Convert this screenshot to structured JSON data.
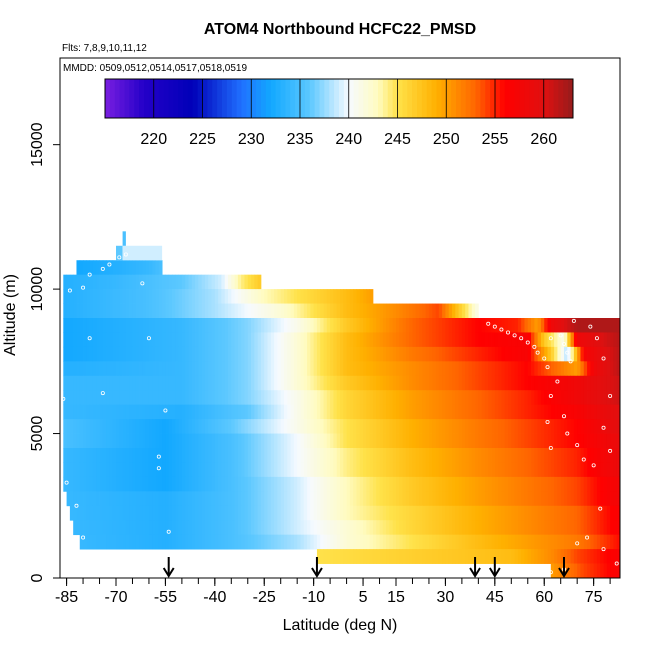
{
  "chart_data": {
    "type": "heatmap",
    "title": "ATOM4 Northbound HCFC22_PMSD",
    "subtitle_lines": [
      "Flts: 7,8,9,10,11,12",
      "MMDD: 0509,0512,0514,0517,0518,0519"
    ],
    "xlabel": "Latitude (deg N)",
    "ylabel": "Altitude (m)",
    "xlim": [
      -87,
      83
    ],
    "ylim": [
      0,
      18000
    ],
    "x_ticks": [
      -85,
      -70,
      -55,
      -40,
      -25,
      -10,
      5,
      15,
      30,
      45,
      60,
      75
    ],
    "x_tick_labels": [
      "-85",
      "-70",
      "-55",
      "-40",
      "-25",
      "-10",
      "5",
      "15",
      "30",
      "45",
      "60",
      "75"
    ],
    "x_minor_step": 5,
    "y_ticks": [
      0,
      5000,
      10000,
      15000
    ],
    "y_tick_labels": [
      "0",
      "5000",
      "10000",
      "15000"
    ],
    "colorbar": {
      "min": 215,
      "max": 263,
      "ticks": [
        220,
        225,
        230,
        235,
        240,
        245,
        250,
        255,
        260
      ],
      "tick_labels": [
        "220",
        "225",
        "230",
        "235",
        "240",
        "245",
        "250",
        "255",
        "260"
      ],
      "stops": [
        [
          215,
          "#7a1fe0"
        ],
        [
          219,
          "#2400c8"
        ],
        [
          224,
          "#0000b8"
        ],
        [
          229,
          "#2070ff"
        ],
        [
          232,
          "#12a8ff"
        ],
        [
          236,
          "#5cc8ff"
        ],
        [
          240,
          "#f6faff"
        ],
        [
          243,
          "#fffbc0"
        ],
        [
          245,
          "#ffe24a"
        ],
        [
          249,
          "#ffb000"
        ],
        [
          253,
          "#ff6600"
        ],
        [
          256,
          "#ff0000"
        ],
        [
          260,
          "#e01010"
        ],
        [
          263,
          "#961c1c"
        ]
      ]
    },
    "profile_markers_lat": [
      -54,
      -9,
      39,
      45,
      66
    ],
    "layers": [
      {
        "z0": 10500,
        "z1": 11000,
        "x0": -82,
        "x1": -56,
        "v": [
          [
            -82,
            232
          ],
          [
            -70,
            233
          ],
          [
            -60,
            234
          ],
          [
            -56,
            235
          ]
        ]
      },
      {
        "z0": 10000,
        "z1": 10500,
        "x0": -86,
        "x1": -26,
        "v": [
          [
            -86,
            233
          ],
          [
            -70,
            234
          ],
          [
            -50,
            236
          ],
          [
            -38,
            239
          ],
          [
            -32,
            244
          ],
          [
            -26,
            247
          ]
        ]
      },
      {
        "z0": 9500,
        "z1": 10000,
        "x0": -86,
        "x1": 8,
        "v": [
          [
            -86,
            233
          ],
          [
            -60,
            235
          ],
          [
            -40,
            238
          ],
          [
            -25,
            243
          ],
          [
            -10,
            246
          ],
          [
            0,
            248
          ],
          [
            8,
            250
          ]
        ]
      },
      {
        "z0": 9000,
        "z1": 9500,
        "x0": -86,
        "x1": 40,
        "v": [
          [
            -86,
            233
          ],
          [
            -60,
            235
          ],
          [
            -40,
            238
          ],
          [
            -20,
            242
          ],
          [
            0,
            248
          ],
          [
            15,
            251
          ],
          [
            28,
            254
          ],
          [
            35,
            246
          ],
          [
            40,
            241
          ]
        ]
      },
      {
        "z0": 8500,
        "z1": 9000,
        "x0": -86,
        "x1": 84,
        "v": [
          [
            -86,
            232
          ],
          [
            -50,
            234
          ],
          [
            -30,
            237
          ],
          [
            -15,
            241
          ],
          [
            0,
            247
          ],
          [
            20,
            253
          ],
          [
            40,
            256
          ],
          [
            52,
            255
          ],
          [
            58,
            250
          ],
          [
            62,
            258
          ],
          [
            70,
            262
          ],
          [
            84,
            262
          ]
        ]
      },
      {
        "z0": 8000,
        "z1": 8500,
        "x0": -86,
        "x1": 84,
        "v": [
          [
            -86,
            232
          ],
          [
            -50,
            234
          ],
          [
            -30,
            237
          ],
          [
            -15,
            242
          ],
          [
            0,
            248
          ],
          [
            20,
            253
          ],
          [
            40,
            256
          ],
          [
            55,
            257
          ],
          [
            60,
            247
          ],
          [
            66,
            241
          ],
          [
            70,
            258
          ],
          [
            84,
            262
          ]
        ]
      },
      {
        "z0": 7500,
        "z1": 8000,
        "x0": -86,
        "x1": 84,
        "v": [
          [
            -86,
            232
          ],
          [
            -50,
            234
          ],
          [
            -30,
            237
          ],
          [
            -15,
            242
          ],
          [
            0,
            248
          ],
          [
            20,
            252
          ],
          [
            40,
            255
          ],
          [
            55,
            257
          ],
          [
            62,
            247
          ],
          [
            67,
            238
          ],
          [
            72,
            257
          ],
          [
            84,
            262
          ]
        ]
      },
      {
        "z0": 7000,
        "z1": 7500,
        "x0": -86,
        "x1": 84,
        "v": [
          [
            -86,
            233
          ],
          [
            -50,
            234
          ],
          [
            -30,
            237
          ],
          [
            -15,
            242
          ],
          [
            0,
            248
          ],
          [
            20,
            251
          ],
          [
            40,
            254
          ],
          [
            55,
            256
          ],
          [
            65,
            252
          ],
          [
            70,
            250
          ],
          [
            75,
            258
          ],
          [
            84,
            262
          ]
        ]
      },
      {
        "z0": 6500,
        "z1": 7000,
        "x0": -86,
        "x1": 84,
        "v": [
          [
            -86,
            234
          ],
          [
            -50,
            234
          ],
          [
            -30,
            237
          ],
          [
            -15,
            242
          ],
          [
            0,
            247
          ],
          [
            20,
            251
          ],
          [
            40,
            254
          ],
          [
            55,
            256
          ],
          [
            70,
            258
          ],
          [
            84,
            261
          ]
        ]
      },
      {
        "z0": 6000,
        "z1": 6500,
        "x0": -86,
        "x1": 84,
        "v": [
          [
            -86,
            234
          ],
          [
            -50,
            234
          ],
          [
            -30,
            237
          ],
          [
            -15,
            241
          ],
          [
            0,
            246
          ],
          [
            20,
            250
          ],
          [
            40,
            253
          ],
          [
            55,
            255
          ],
          [
            70,
            258
          ],
          [
            84,
            261
          ]
        ]
      },
      {
        "z0": 5500,
        "z1": 6000,
        "x0": -86,
        "x1": 84,
        "v": [
          [
            -86,
            234
          ],
          [
            -50,
            233
          ],
          [
            -30,
            236
          ],
          [
            -15,
            241
          ],
          [
            0,
            246
          ],
          [
            20,
            250
          ],
          [
            40,
            253
          ],
          [
            55,
            255
          ],
          [
            70,
            257
          ],
          [
            84,
            260
          ]
        ]
      },
      {
        "z0": 5000,
        "z1": 5500,
        "x0": -86,
        "x1": 84,
        "v": [
          [
            -86,
            235
          ],
          [
            -55,
            232
          ],
          [
            -35,
            236
          ],
          [
            -15,
            241
          ],
          [
            0,
            245
          ],
          [
            20,
            249
          ],
          [
            40,
            252
          ],
          [
            55,
            254
          ],
          [
            70,
            256
          ],
          [
            84,
            260
          ]
        ]
      },
      {
        "z0": 4500,
        "z1": 5000,
        "x0": -86,
        "x1": 84,
        "v": [
          [
            -86,
            235
          ],
          [
            -55,
            232
          ],
          [
            -35,
            235
          ],
          [
            -15,
            240
          ],
          [
            0,
            245
          ],
          [
            20,
            249
          ],
          [
            40,
            252
          ],
          [
            55,
            254
          ],
          [
            70,
            256
          ],
          [
            84,
            259
          ]
        ]
      },
      {
        "z0": 4000,
        "z1": 4500,
        "x0": -86,
        "x1": 84,
        "v": [
          [
            -86,
            234
          ],
          [
            -55,
            232
          ],
          [
            -35,
            235
          ],
          [
            -15,
            240
          ],
          [
            0,
            244
          ],
          [
            20,
            248
          ],
          [
            40,
            251
          ],
          [
            55,
            253
          ],
          [
            70,
            255
          ],
          [
            84,
            259
          ]
        ]
      },
      {
        "z0": 3500,
        "z1": 4000,
        "x0": -86,
        "x1": 84,
        "v": [
          [
            -86,
            234
          ],
          [
            -55,
            232
          ],
          [
            -35,
            235
          ],
          [
            -15,
            240
          ],
          [
            0,
            244
          ],
          [
            20,
            248
          ],
          [
            40,
            251
          ],
          [
            55,
            253
          ],
          [
            70,
            255
          ],
          [
            84,
            259
          ]
        ]
      },
      {
        "z0": 3000,
        "z1": 3500,
        "x0": -86,
        "x1": 84,
        "v": [
          [
            -86,
            234
          ],
          [
            -55,
            232
          ],
          [
            -35,
            235
          ],
          [
            -15,
            239
          ],
          [
            0,
            243
          ],
          [
            20,
            247
          ],
          [
            40,
            250
          ],
          [
            55,
            252
          ],
          [
            70,
            254
          ],
          [
            84,
            258
          ]
        ]
      },
      {
        "z0": 2500,
        "z1": 3000,
        "x0": -85,
        "x1": 84,
        "v": [
          [
            -85,
            234
          ],
          [
            -55,
            233
          ],
          [
            -35,
            235
          ],
          [
            -15,
            239
          ],
          [
            0,
            243
          ],
          [
            20,
            247
          ],
          [
            40,
            250
          ],
          [
            55,
            252
          ],
          [
            70,
            254
          ],
          [
            84,
            258
          ]
        ]
      },
      {
        "z0": 2000,
        "z1": 2500,
        "x0": -84,
        "x1": 84,
        "v": [
          [
            -84,
            234
          ],
          [
            -55,
            233
          ],
          [
            -35,
            235
          ],
          [
            -15,
            239
          ],
          [
            0,
            243
          ],
          [
            20,
            246
          ],
          [
            40,
            249
          ],
          [
            55,
            251
          ],
          [
            70,
            253
          ],
          [
            84,
            257
          ]
        ]
      },
      {
        "z0": 1500,
        "z1": 2000,
        "x0": -83,
        "x1": 84,
        "v": [
          [
            -83,
            234
          ],
          [
            -55,
            233
          ],
          [
            -35,
            235
          ],
          [
            -15,
            239
          ],
          [
            0,
            242
          ],
          [
            20,
            246
          ],
          [
            40,
            249
          ],
          [
            55,
            251
          ],
          [
            70,
            253
          ],
          [
            84,
            257
          ]
        ]
      },
      {
        "z0": 1000,
        "z1": 1500,
        "x0": -81,
        "x1": 84,
        "v": [
          [
            -81,
            234
          ],
          [
            -55,
            233
          ],
          [
            -35,
            235
          ],
          [
            -15,
            238
          ],
          [
            0,
            242
          ],
          [
            20,
            245
          ],
          [
            40,
            248
          ],
          [
            55,
            250
          ],
          [
            70,
            252
          ],
          [
            84,
            256
          ]
        ]
      },
      {
        "z0": 500,
        "z1": 1000,
        "x0": -9,
        "x1": 84,
        "v": [
          [
            -9,
            245
          ],
          [
            10,
            246
          ],
          [
            30,
            247
          ],
          [
            50,
            248
          ],
          [
            62,
            251
          ],
          [
            70,
            254
          ],
          [
            84,
            257
          ]
        ]
      },
      {
        "z0": 0,
        "z1": 500,
        "x0": 62,
        "x1": 84,
        "v": [
          [
            62,
            250
          ],
          [
            72,
            254
          ],
          [
            84,
            257
          ]
        ]
      }
    ],
    "extra_patches": [
      {
        "z0": 11000,
        "z1": 11500,
        "x0": -70,
        "x1": -68,
        "val": 236
      },
      {
        "z0": 11000,
        "z1": 11500,
        "x0": -68,
        "x1": -56,
        "val": 239
      },
      {
        "z0": 11500,
        "z1": 12000,
        "x0": -68,
        "x1": -67,
        "val": 235
      }
    ],
    "sample_points": [
      [
        -80,
        10050
      ],
      [
        -78,
        10500
      ],
      [
        -74,
        10700
      ],
      [
        -72,
        10850
      ],
      [
        -69,
        11100
      ],
      [
        -67,
        11200
      ],
      [
        -62,
        10200
      ],
      [
        -84,
        9950
      ],
      [
        -86,
        6200
      ],
      [
        -85,
        3300
      ],
      [
        -82,
        2500
      ],
      [
        -80,
        1400
      ],
      [
        -78,
        8300
      ],
      [
        -74,
        6400
      ],
      [
        -60,
        8300
      ],
      [
        -55,
        5800
      ],
      [
        -57,
        4200
      ],
      [
        -57,
        3800
      ],
      [
        -54,
        1600
      ],
      [
        43,
        8800
      ],
      [
        45,
        8700
      ],
      [
        47,
        8600
      ],
      [
        49,
        8500
      ],
      [
        51,
        8400
      ],
      [
        53,
        8300
      ],
      [
        55,
        8150
      ],
      [
        57,
        8000
      ],
      [
        58,
        7800
      ],
      [
        60,
        7600
      ],
      [
        61,
        7300
      ],
      [
        62,
        8300
      ],
      [
        63,
        9200
      ],
      [
        65,
        8400
      ],
      [
        66,
        8100
      ],
      [
        67,
        7800
      ],
      [
        68,
        7500
      ],
      [
        69,
        8900
      ],
      [
        72,
        9300
      ],
      [
        74,
        8700
      ],
      [
        76,
        8300
      ],
      [
        78,
        7600
      ],
      [
        80,
        6300
      ],
      [
        82,
        9100
      ],
      [
        62,
        6300
      ],
      [
        64,
        6800
      ],
      [
        66,
        5600
      ],
      [
        61,
        5400
      ],
      [
        67,
        5000
      ],
      [
        70,
        4600
      ],
      [
        72,
        4100
      ],
      [
        75,
        3900
      ],
      [
        77,
        2400
      ],
      [
        73,
        1400
      ],
      [
        70,
        1200
      ],
      [
        62,
        4500
      ],
      [
        80,
        4400
      ],
      [
        78,
        5200
      ],
      [
        82,
        500
      ],
      [
        78,
        1000
      ],
      [
        66,
        300
      ],
      [
        62,
        200
      ]
    ]
  }
}
